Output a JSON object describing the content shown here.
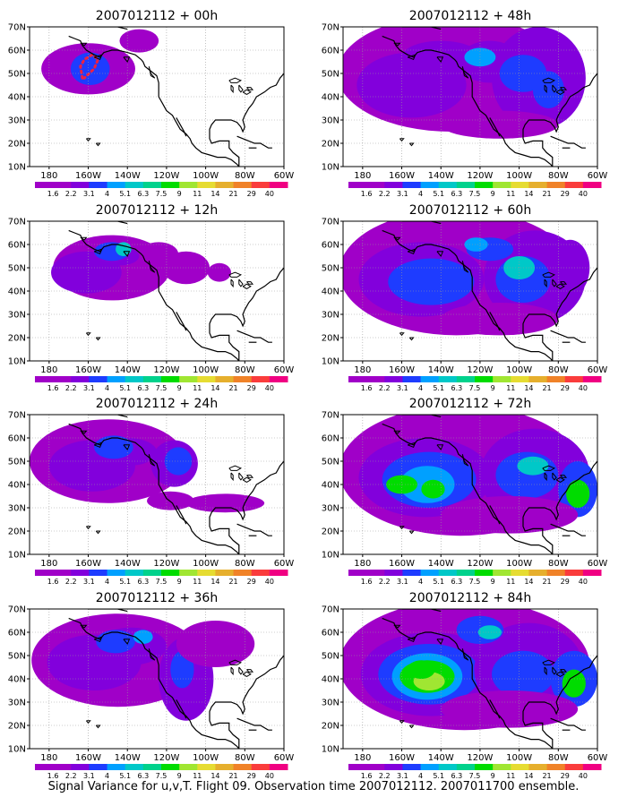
{
  "panels": [
    {
      "title": "2007012112 + 00h",
      "lead_hours": 0
    },
    {
      "title": "2007012112 + 48h",
      "lead_hours": 48
    },
    {
      "title": "2007012112 + 12h",
      "lead_hours": 12
    },
    {
      "title": "2007012112 + 60h",
      "lead_hours": 60
    },
    {
      "title": "2007012112 + 24h",
      "lead_hours": 24
    },
    {
      "title": "2007012112 + 72h",
      "lead_hours": 72
    },
    {
      "title": "2007012112 + 36h",
      "lead_hours": 36
    },
    {
      "title": "2007012112 + 84h",
      "lead_hours": 84
    }
  ],
  "axes": {
    "lon_ticks": [
      "180",
      "160W",
      "140W",
      "120W",
      "100W",
      "80W",
      "60W"
    ],
    "lat_ticks": [
      "10N",
      "20N",
      "30N",
      "40N",
      "50N",
      "60N",
      "70N"
    ]
  },
  "colorbar": {
    "labels": [
      "1.6",
      "2.2",
      "3.1",
      "4",
      "5.1",
      "6.3",
      "7.5",
      "9",
      "11",
      "14",
      "21",
      "29",
      "40"
    ],
    "colors": [
      "#a000c8",
      "#8200dc",
      "#1e3cff",
      "#00a0ff",
      "#00c8c8",
      "#00d28c",
      "#00dc00",
      "#a0e632",
      "#e6dc32",
      "#e6af2d",
      "#f08228",
      "#fa3c3c",
      "#f00082"
    ]
  },
  "caption": "Signal Variance for u,v,T. Flight 09. Observation time 2007012112. 2007011700 ensemble.",
  "colors": {
    "coast": "#000000",
    "grid": "#999999",
    "flight_track": "#f02040"
  }
}
